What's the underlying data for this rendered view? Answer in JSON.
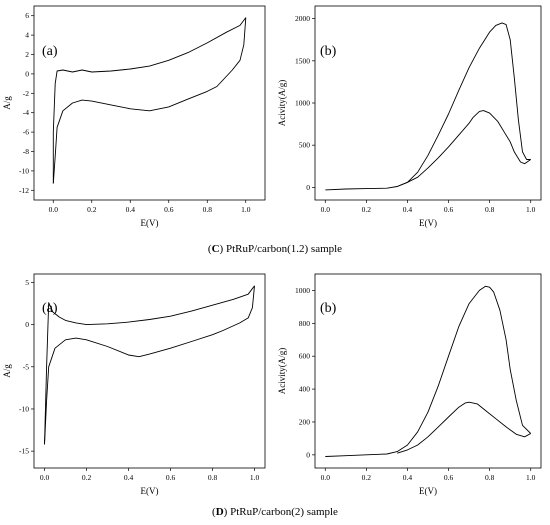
{
  "captions": [
    {
      "letter": "C",
      "text": " PtRuP/carbon(1.2) sample"
    },
    {
      "letter": "D",
      "text": " PtRuP/carbon(2) sample"
    }
  ],
  "chart_data": [
    {
      "type": "line",
      "panel_label": "(a)",
      "xlabel": "E(V)",
      "ylabel": "A/g",
      "xlim": [
        -0.1,
        1.1
      ],
      "ylim": [
        -13,
        7
      ],
      "xticks": [
        0.0,
        0.2,
        0.4,
        0.6,
        0.8,
        1.0
      ],
      "xtick_labels": [
        "0.0",
        "0.2",
        "0.4",
        "0.6",
        "0.8",
        "1.0"
      ],
      "yticks": [
        -12,
        -10,
        -8,
        -6,
        -4,
        -2,
        0,
        2,
        4,
        6
      ],
      "ytick_labels": [
        "-12",
        "-10",
        "-8",
        "-6",
        "-4",
        "-2",
        "0",
        "2",
        "4",
        "6"
      ],
      "grid": false,
      "series": [
        {
          "x": [
            0.0,
            0.0,
            0.01,
            0.02,
            0.05,
            0.1,
            0.15,
            0.2,
            0.3,
            0.4,
            0.5,
            0.6,
            0.7,
            0.8,
            0.9,
            0.97,
            1.0
          ],
          "y": [
            -11.3,
            -6,
            -1,
            0.3,
            0.4,
            0.2,
            0.4,
            0.2,
            0.3,
            0.5,
            0.8,
            1.4,
            2.2,
            3.2,
            4.3,
            5.0,
            5.8
          ]
        },
        {
          "x": [
            1.0,
            0.99,
            0.97,
            0.93,
            0.85,
            0.8,
            0.7,
            0.6,
            0.5,
            0.4,
            0.3,
            0.2,
            0.15,
            0.1,
            0.05,
            0.02,
            0.01,
            0.0
          ],
          "y": [
            5.8,
            3.0,
            1.4,
            0.4,
            -1.3,
            -1.8,
            -2.6,
            -3.4,
            -3.8,
            -3.6,
            -3.2,
            -2.8,
            -2.7,
            -3.0,
            -3.8,
            -5.5,
            -8.5,
            -11.3
          ]
        }
      ]
    },
    {
      "type": "line",
      "panel_label": "(b)",
      "xlabel": "E(V)",
      "ylabel": "Acivity(A/g)",
      "xlim": [
        -0.05,
        1.05
      ],
      "ylim": [
        -150,
        2150
      ],
      "xticks": [
        0.0,
        0.2,
        0.4,
        0.6,
        0.8,
        1.0
      ],
      "xtick_labels": [
        "0.0",
        "0.2",
        "0.4",
        "0.6",
        "0.8",
        "1.0"
      ],
      "yticks": [
        0,
        500,
        1000,
        1500,
        2000
      ],
      "ytick_labels": [
        "0",
        "500",
        "1000",
        "1500",
        "2000"
      ],
      "grid": false,
      "series": [
        {
          "x": [
            0.0,
            0.1,
            0.2,
            0.3,
            0.35,
            0.4,
            0.45,
            0.5,
            0.55,
            0.6,
            0.65,
            0.7,
            0.75,
            0.8,
            0.83,
            0.86,
            0.88,
            0.9,
            0.92,
            0.94,
            0.96,
            0.98,
            1.0
          ],
          "y": [
            -30,
            -20,
            -15,
            -10,
            10,
            60,
            180,
            380,
            620,
            870,
            1150,
            1420,
            1650,
            1840,
            1920,
            1950,
            1930,
            1750,
            1300,
            800,
            420,
            330,
            330
          ]
        },
        {
          "x": [
            1.0,
            0.97,
            0.95,
            0.92,
            0.9,
            0.87,
            0.84,
            0.8,
            0.77,
            0.75,
            0.72,
            0.7,
            0.65,
            0.6,
            0.55,
            0.5,
            0.45,
            0.4,
            0.35
          ],
          "y": [
            330,
            280,
            300,
            420,
            540,
            660,
            780,
            880,
            910,
            900,
            830,
            760,
            620,
            480,
            350,
            230,
            120,
            60,
            10
          ]
        }
      ]
    },
    {
      "type": "line",
      "panel_label": "(a)",
      "xlabel": "E(V)",
      "ylabel": "A/g",
      "xlim": [
        -0.05,
        1.05
      ],
      "ylim": [
        -17,
        6
      ],
      "xticks": [
        0.0,
        0.2,
        0.4,
        0.6,
        0.8,
        1.0
      ],
      "xtick_labels": [
        "0.0",
        "0.2",
        "0.4",
        "0.6",
        "0.8",
        "1.0"
      ],
      "yticks": [
        -15,
        -10,
        -5,
        0,
        5
      ],
      "ytick_labels": [
        "-15",
        "-10",
        "-5",
        "0",
        "5"
      ],
      "grid": false,
      "series": [
        {
          "x": [
            0.0,
            0.01,
            0.02,
            0.04,
            0.07,
            0.1,
            0.15,
            0.2,
            0.3,
            0.4,
            0.5,
            0.6,
            0.7,
            0.8,
            0.9,
            0.97,
            1.0
          ],
          "y": [
            -14.2,
            -5,
            2.6,
            1.5,
            0.9,
            0.5,
            0.2,
            0.0,
            0.1,
            0.3,
            0.6,
            1.0,
            1.6,
            2.3,
            3.0,
            3.6,
            4.6
          ]
        },
        {
          "x": [
            1.0,
            0.99,
            0.97,
            0.93,
            0.85,
            0.8,
            0.7,
            0.6,
            0.5,
            0.45,
            0.4,
            0.3,
            0.2,
            0.15,
            0.1,
            0.05,
            0.02,
            0.01,
            0.0
          ],
          "y": [
            4.6,
            2.0,
            0.8,
            0.2,
            -0.7,
            -1.2,
            -2.0,
            -2.8,
            -3.5,
            -3.8,
            -3.6,
            -2.6,
            -1.8,
            -1.6,
            -1.8,
            -2.8,
            -5.0,
            -9.0,
            -14.2
          ]
        }
      ]
    },
    {
      "type": "line",
      "panel_label": "(b)",
      "xlabel": "E(V)",
      "ylabel": "Acivity(A/g)",
      "xlim": [
        -0.05,
        1.05
      ],
      "ylim": [
        -80,
        1100
      ],
      "xticks": [
        0.0,
        0.2,
        0.4,
        0.6,
        0.8,
        1.0
      ],
      "xtick_labels": [
        "0.0",
        "0.2",
        "0.4",
        "0.6",
        "0.8",
        "1.0"
      ],
      "yticks": [
        0,
        200,
        400,
        600,
        800,
        1000
      ],
      "ytick_labels": [
        "0",
        "200",
        "400",
        "600",
        "800",
        "1000"
      ],
      "grid": false,
      "series": [
        {
          "x": [
            0.0,
            0.1,
            0.2,
            0.3,
            0.35,
            0.4,
            0.45,
            0.5,
            0.55,
            0.6,
            0.65,
            0.7,
            0.75,
            0.78,
            0.8,
            0.82,
            0.85,
            0.88,
            0.9,
            0.93,
            0.96,
            1.0
          ],
          "y": [
            -10,
            -5,
            0,
            5,
            20,
            60,
            140,
            260,
            420,
            600,
            780,
            920,
            1000,
            1025,
            1020,
            990,
            880,
            700,
            520,
            330,
            180,
            130
          ]
        },
        {
          "x": [
            1.0,
            0.97,
            0.93,
            0.88,
            0.83,
            0.78,
            0.74,
            0.7,
            0.68,
            0.65,
            0.6,
            0.55,
            0.5,
            0.45,
            0.4,
            0.35
          ],
          "y": [
            130,
            110,
            125,
            170,
            220,
            270,
            310,
            320,
            315,
            290,
            230,
            170,
            110,
            60,
            30,
            10
          ]
        }
      ]
    }
  ]
}
